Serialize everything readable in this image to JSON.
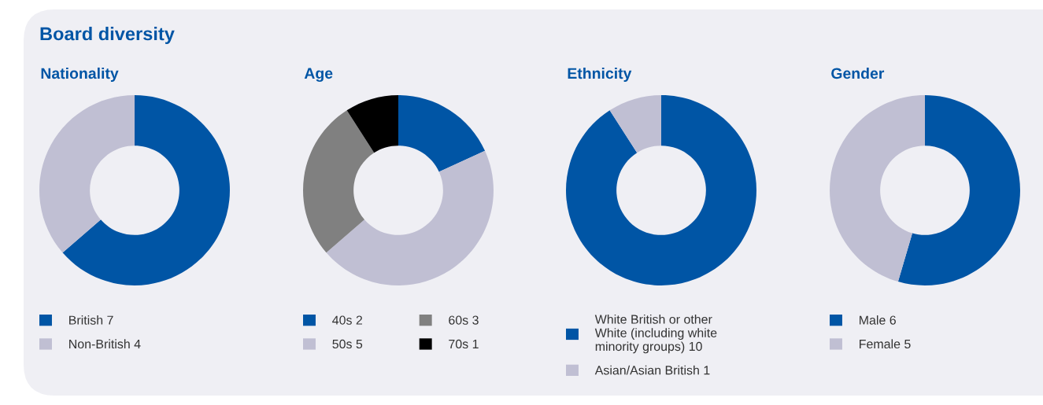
{
  "chart_data": [
    {
      "type": "donut",
      "title": "Nationality",
      "annotations": [
        "Board diversity"
      ],
      "categories": [
        "British 7",
        "Non-British 4"
      ],
      "values": [
        7,
        4
      ],
      "colors": [
        "#0055a5",
        "#c0bfd3"
      ],
      "legend": "bottom"
    },
    {
      "type": "donut",
      "title": "Age",
      "categories": [
        "40s 2",
        "50s 5",
        "60s 3",
        "70s 1"
      ],
      "values": [
        2,
        5,
        3,
        1
      ],
      "colors": [
        "#0055a5",
        "#c0bfd3",
        "#808080",
        "#000000"
      ],
      "legend": "bottom"
    },
    {
      "type": "donut",
      "title": "Ethnicity",
      "categories": [
        "White British or other White (including white minority groups) 10",
        "Asian/Asian British 1"
      ],
      "values": [
        10,
        1
      ],
      "colors": [
        "#0055a5",
        "#c0bfd3"
      ],
      "legend": "bottom"
    },
    {
      "type": "donut",
      "title": "Gender",
      "categories": [
        "Male 6",
        "Female 5"
      ],
      "values": [
        6,
        5
      ],
      "colors": [
        "#0055a5",
        "#c0bfd3"
      ],
      "legend": "bottom"
    }
  ]
}
